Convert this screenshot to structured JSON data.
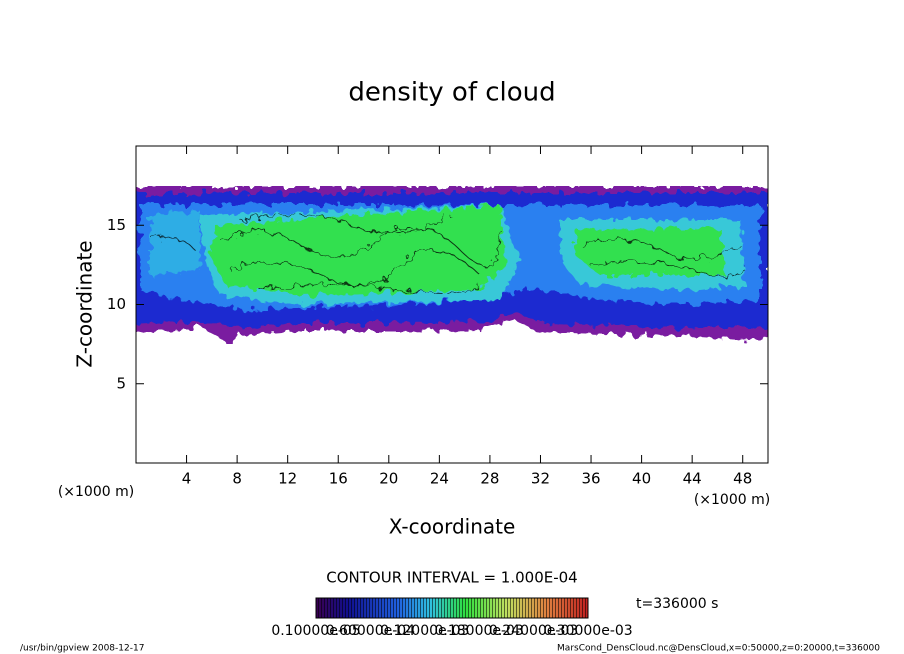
{
  "chart_data": {
    "type": "contour",
    "title": "density of cloud",
    "x_label": "X-coordinate",
    "y_label": "Z-coordinate",
    "x_unit": "(×1000 m)",
    "y_unit": "(×1000 m)",
    "xlim": [
      0,
      50
    ],
    "xticks": [
      4,
      8,
      12,
      16,
      20,
      24,
      28,
      32,
      36,
      40,
      44,
      48
    ],
    "ylim": [
      0,
      20
    ],
    "yticks": [
      5,
      10,
      15
    ],
    "contour_interval": "CONTOUR INTERVAL = 1.000E-04",
    "time": "t=336000 s",
    "colorbar_labels": [
      "0.10000e-05",
      "0.60000e-04",
      "0.12000e-03",
      "0.18000e-03",
      "0.24000e-03",
      "0.30000e-03"
    ],
    "footer_left": "/usr/bin/gpview   2008-12-17",
    "footer_right": "MarsCond_DensCloud.nc@DensCloud,x=0:50000,z=0:20000,t=336000"
  }
}
